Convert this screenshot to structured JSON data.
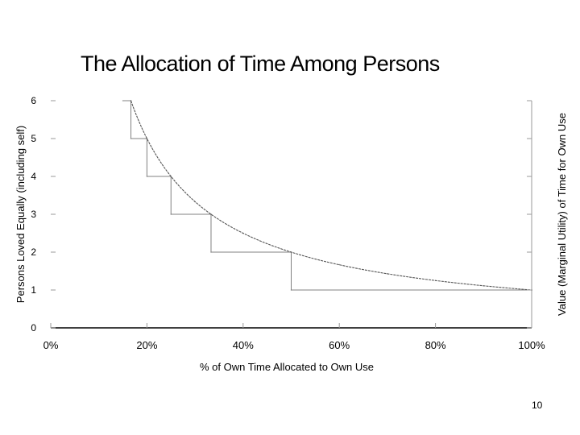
{
  "slide": {
    "title": "The Allocation of Time Among Persons",
    "page_number": "10"
  },
  "chart_data": {
    "type": "line",
    "title": "The Allocation of Time Among Persons",
    "xlabel": "% of Own Time Allocated to Own Use",
    "ylabel": "Persons Loved Equally (including self)",
    "ylabel_right": "Value (Marginal Utility) of Time for Own Use",
    "xlim": [
      0,
      100
    ],
    "ylim": [
      0,
      6
    ],
    "x_ticks": [
      0,
      20,
      40,
      60,
      80,
      100
    ],
    "x_tick_labels": [
      "0%",
      "20%",
      "40%",
      "60%",
      "80%",
      "100%"
    ],
    "y_ticks": [
      0,
      1,
      2,
      3,
      4,
      5,
      6
    ],
    "y_tick_labels": [
      "0",
      "1",
      "2",
      "3",
      "4",
      "5",
      "6"
    ],
    "grid": false,
    "series": [
      {
        "style": "step",
        "color": "#808080",
        "points": [
          [
            15,
            6
          ],
          [
            16.67,
            6
          ],
          [
            16.67,
            5
          ],
          [
            20,
            5
          ],
          [
            20,
            4
          ],
          [
            25,
            4
          ],
          [
            25,
            3
          ],
          [
            33.33,
            3
          ],
          [
            33.33,
            2
          ],
          [
            50,
            2
          ],
          [
            50,
            1
          ],
          [
            100,
            1
          ]
        ]
      },
      {
        "style": "curve",
        "color": "#555555",
        "function": "y = 100 / x",
        "x_range": [
          16.67,
          100
        ],
        "points": [
          [
            16.67,
            6
          ],
          [
            20,
            5
          ],
          [
            25,
            4
          ],
          [
            30,
            3.33
          ],
          [
            33.33,
            3
          ],
          [
            40,
            2.5
          ],
          [
            50,
            2
          ],
          [
            60,
            1.67
          ],
          [
            70,
            1.43
          ],
          [
            80,
            1.25
          ],
          [
            90,
            1.11
          ],
          [
            100,
            1
          ]
        ]
      }
    ]
  }
}
